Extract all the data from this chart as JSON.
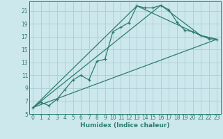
{
  "xlabel": "Humidex (Indice chaleur)",
  "background_color": "#cce8ec",
  "grid_color": "#aacdd4",
  "line_color": "#2e7d6e",
  "xlim": [
    -0.5,
    23.5
  ],
  "ylim": [
    5,
    22.5
  ],
  "xticks": [
    0,
    1,
    2,
    3,
    4,
    5,
    6,
    7,
    8,
    9,
    10,
    11,
    12,
    13,
    14,
    15,
    16,
    17,
    18,
    19,
    20,
    21,
    22,
    23
  ],
  "yticks": [
    5,
    7,
    9,
    11,
    13,
    15,
    17,
    19,
    21
  ],
  "series": [
    [
      0,
      6.0
    ],
    [
      1,
      6.8
    ],
    [
      2,
      6.3
    ],
    [
      3,
      7.3
    ],
    [
      4,
      8.8
    ],
    [
      5,
      10.3
    ],
    [
      6,
      11.0
    ],
    [
      7,
      10.3
    ],
    [
      8,
      13.2
    ],
    [
      9,
      13.5
    ],
    [
      10,
      17.8
    ],
    [
      11,
      18.5
    ],
    [
      12,
      19.2
    ],
    [
      13,
      21.8
    ],
    [
      14,
      21.5
    ],
    [
      15,
      21.5
    ],
    [
      16,
      21.9
    ],
    [
      17,
      21.2
    ],
    [
      18,
      19.3
    ],
    [
      19,
      18.0
    ],
    [
      20,
      17.8
    ],
    [
      21,
      17.2
    ],
    [
      22,
      16.7
    ],
    [
      23,
      16.6
    ]
  ],
  "line2": [
    [
      0,
      6.0
    ],
    [
      16,
      21.9
    ],
    [
      21,
      17.2
    ],
    [
      23,
      16.6
    ]
  ],
  "line3": [
    [
      0,
      6.0
    ],
    [
      23,
      16.6
    ]
  ],
  "line4": [
    [
      0,
      6.0
    ],
    [
      13,
      21.8
    ],
    [
      21,
      17.2
    ],
    [
      23,
      16.6
    ]
  ]
}
